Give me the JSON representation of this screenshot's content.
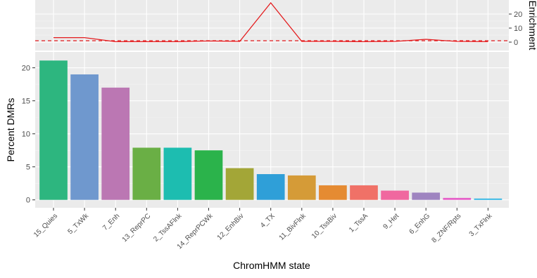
{
  "chart_data": [
    {
      "type": "line",
      "ylabel": "Enrichment",
      "yticks": [
        0,
        10,
        20
      ],
      "ylim": [
        -6,
        30
      ],
      "reference_line": {
        "y": 1,
        "style": "dashed",
        "color": "#E41A1C"
      },
      "series": [
        {
          "color": "#E41A1C",
          "values": [
            3.2,
            3.2,
            0.3,
            0.3,
            0.3,
            0.8,
            0.5,
            28.0,
            0.5,
            0.5,
            0.3,
            0.5,
            2.0,
            0.5,
            0.3
          ]
        }
      ],
      "grid": true
    },
    {
      "type": "bar",
      "xlabel": "ChromHMM state",
      "ylabel": "Percent DMRs",
      "ylim": [
        -1.2,
        22.4
      ],
      "yticks": [
        0,
        5,
        10,
        15,
        20
      ],
      "categories": [
        "15_Quies",
        "5_TxWk",
        "7_Enh",
        "13_ReprPC",
        "2_TssAFlnk",
        "14_ReprPCWk",
        "12_EnhBiv",
        "4_TX",
        "11_BivFlnk",
        "10_TssBiv",
        "1_TssA",
        "9_Het",
        "6_EnhG",
        "8_ZNF/Rpts",
        "3_TxFlnk"
      ],
      "values": [
        21.1,
        19.0,
        17.0,
        7.9,
        7.9,
        7.5,
        4.8,
        3.9,
        3.7,
        2.2,
        2.2,
        1.4,
        1.1,
        0.3,
        0.2
      ],
      "colors": [
        "#2DB67F",
        "#6F98CE",
        "#BB77B3",
        "#6AAF45",
        "#1DBDB0",
        "#2BB34B",
        "#A3A637",
        "#2F9FD8",
        "#D59B37",
        "#E58B32",
        "#F07167",
        "#F0689F",
        "#9E84C0",
        "#E560C8",
        "#2FB5E3"
      ],
      "grid": true
    }
  ]
}
